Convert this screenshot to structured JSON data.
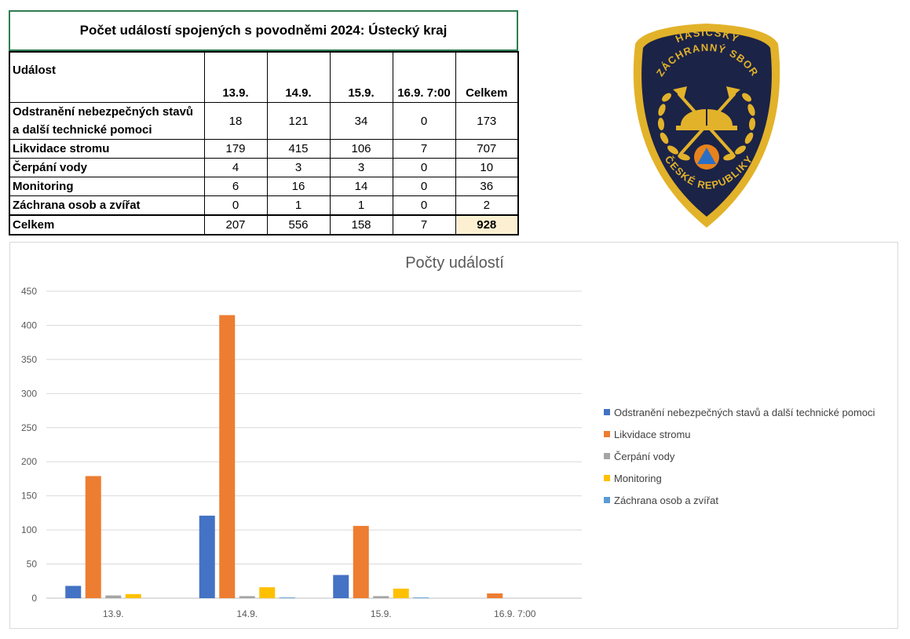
{
  "table": {
    "title": "Počet událostí spojených s povodněmi 2024: Ústecký kraj",
    "header": {
      "event": "Událost",
      "cols": [
        "13.9.",
        "14.9.",
        "15.9.",
        "16.9. 7:00",
        "Celkem"
      ]
    },
    "rows": [
      {
        "label_line1": "Odstranění nebezpečných stavů",
        "label_line2": "a další technické pomoci",
        "values": [
          "18",
          "121",
          "34",
          "0",
          "173"
        ]
      },
      {
        "label": "Likvidace stromu",
        "values": [
          "179",
          "415",
          "106",
          "7",
          "707"
        ]
      },
      {
        "label": "Čerpání vody",
        "values": [
          "4",
          "3",
          "3",
          "0",
          "10"
        ]
      },
      {
        "label": "Monitoring",
        "values": [
          "6",
          "16",
          "14",
          "0",
          "36"
        ]
      },
      {
        "label": "Záchrana osob a zvířat",
        "values": [
          "0",
          "1",
          "1",
          "0",
          "2"
        ]
      }
    ],
    "total": {
      "label": "Celkem",
      "values": [
        "207",
        "556",
        "158",
        "7",
        "928"
      ]
    }
  },
  "logo": {
    "line1": "HASIČSKÝ",
    "line2": "ZÁCHRANNÝ SBOR",
    "line3": "ČESKÉ REPUBLIKY",
    "colors": {
      "shield": "#1b2347",
      "gold": "#e2b22a",
      "orange": "#e8821c",
      "blue": "#2b6fc4"
    }
  },
  "chart_data": {
    "type": "bar",
    "title": "Počty událostí",
    "categories": [
      "13.9.",
      "14.9.",
      "15.9.",
      "16.9. 7:00"
    ],
    "ylim": [
      0,
      450
    ],
    "yticks": [
      0,
      50,
      100,
      150,
      200,
      250,
      300,
      350,
      400,
      450
    ],
    "grid": true,
    "legend_position": "right",
    "series": [
      {
        "name": "Odstranění nebezpečných stavů a další technické pomoci",
        "color": "#4472c4",
        "values": [
          18,
          121,
          34,
          0
        ]
      },
      {
        "name": "Likvidace stromu",
        "color": "#ed7d31",
        "values": [
          179,
          415,
          106,
          7
        ]
      },
      {
        "name": "Čerpání vody",
        "color": "#a5a5a5",
        "values": [
          4,
          3,
          3,
          0
        ]
      },
      {
        "name": "Monitoring",
        "color": "#ffc000",
        "values": [
          6,
          16,
          14,
          0
        ]
      },
      {
        "name": "Záchrana osob a zvířat",
        "color": "#5b9bd5",
        "values": [
          0,
          1,
          1,
          0
        ]
      }
    ]
  }
}
